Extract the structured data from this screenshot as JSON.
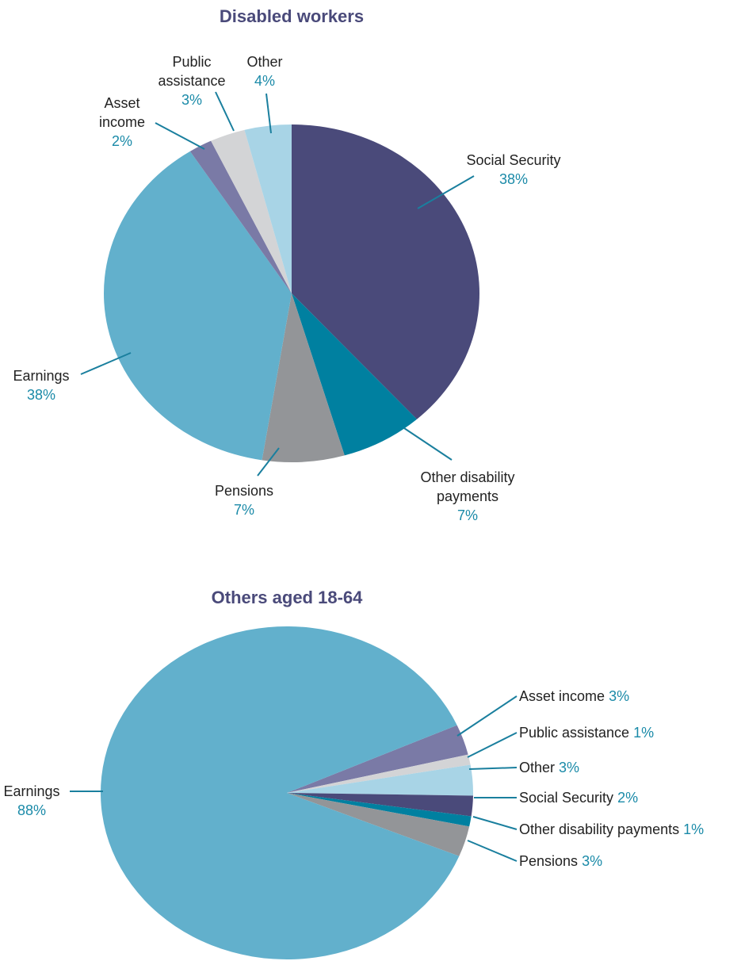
{
  "chart_data": [
    {
      "type": "pie",
      "title": "Disabled workers",
      "categories": [
        "Social Security",
        "Other disability payments",
        "Pensions",
        "Earnings",
        "Asset income",
        "Public assistance",
        "Other"
      ],
      "values": [
        38,
        7,
        7,
        38,
        2,
        3,
        4
      ],
      "value_labels": [
        "38%",
        "7%",
        "7%",
        "38%",
        "2%",
        "3%",
        "4%"
      ],
      "colors": [
        "#4a4a7a",
        "#0080a0",
        "#939598",
        "#62b0cc",
        "#7a7aa6",
        "#d3d4d6",
        "#a8d4e6"
      ]
    },
    {
      "type": "pie",
      "title": "Others aged 18-64",
      "categories": [
        "Asset income",
        "Public assistance",
        "Other",
        "Social Security",
        "Other disability payments",
        "Pensions",
        "Earnings"
      ],
      "values": [
        3,
        1,
        3,
        2,
        1,
        3,
        88
      ],
      "value_labels": [
        "3%",
        "1%",
        "3%",
        "2%",
        "1%",
        "3%",
        "88%"
      ],
      "colors": [
        "#7a7aa6",
        "#d3d4d6",
        "#a8d4e6",
        "#4a4a7a",
        "#0080a0",
        "#939598",
        "#62b0cc"
      ]
    }
  ]
}
